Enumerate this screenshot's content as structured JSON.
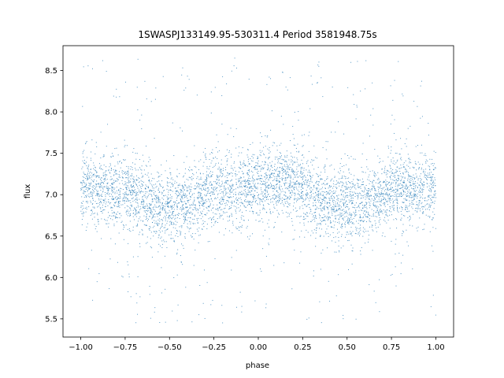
{
  "chart_data": {
    "type": "scatter",
    "title": "1SWASPJ133149.95-530311.4 Period 3581948.75s",
    "xlabel": "phase",
    "ylabel": "flux",
    "xlim": [
      -1.1,
      1.1
    ],
    "ylim": [
      5.28,
      8.8
    ],
    "x_ticks": [
      -1.0,
      -0.75,
      -0.5,
      -0.25,
      0.0,
      0.25,
      0.5,
      0.75,
      1.0
    ],
    "x_tick_labels": [
      "−1.00",
      "−0.75",
      "−0.50",
      "−0.25",
      "0.00",
      "0.25",
      "0.50",
      "0.75",
      "1.00"
    ],
    "y_ticks": [
      5.5,
      6.0,
      6.5,
      7.0,
      7.5,
      8.0,
      8.5
    ],
    "y_tick_labels": [
      "5.5",
      "6.0",
      "6.5",
      "7.0",
      "7.5",
      "8.0",
      "8.5"
    ],
    "grid": false,
    "marker_color": "#1f77b4",
    "series": [
      {
        "phase_range": [
          -1.0,
          1.0
        ],
        "mean_flux_profile": {
          "phase": [
            -1.0,
            -0.9,
            -0.8,
            -0.7,
            -0.6,
            -0.55,
            -0.5,
            -0.4,
            -0.3,
            -0.2,
            -0.1,
            0.0,
            0.1,
            0.2,
            0.3,
            0.4,
            0.45,
            0.5,
            0.6,
            0.7,
            0.8,
            0.9,
            1.0
          ],
          "flux": [
            7.1,
            7.1,
            7.05,
            7.0,
            6.9,
            6.85,
            6.9,
            6.85,
            7.0,
            7.1,
            7.05,
            7.1,
            7.15,
            7.1,
            7.0,
            6.9,
            6.85,
            6.9,
            6.85,
            7.0,
            7.1,
            7.05,
            7.1
          ]
        },
        "flux_scatter_sigma": 0.22,
        "flux_min": 5.45,
        "flux_max": 8.65
      }
    ]
  }
}
